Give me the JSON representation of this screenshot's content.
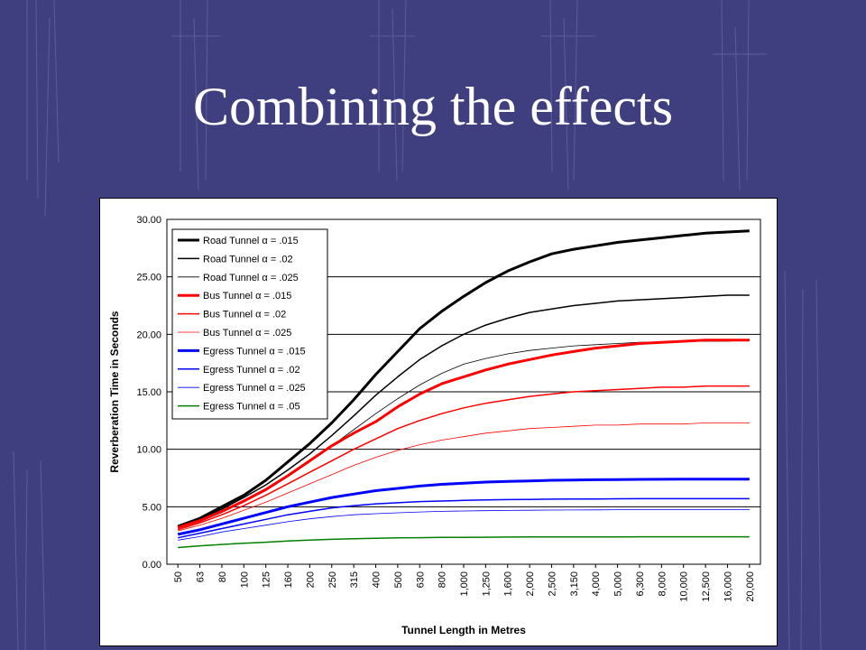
{
  "slide": {
    "title": "Combining the effects"
  },
  "colors": {
    "background": "#3f3f7f",
    "road": "#000000",
    "bus": "#ff0000",
    "egress": "#0000ff",
    "egress_05": "#008000"
  },
  "chart_data": {
    "type": "line",
    "xlabel": "Tunnel Length in Metres",
    "ylabel": "Reverberation Time in Seconds",
    "ylim": [
      0,
      30
    ],
    "ytick_labels": [
      "0.00",
      "5.00",
      "10.00",
      "15.00",
      "20.00",
      "25.00",
      "30.00"
    ],
    "grid": "horizontal",
    "legend_position": "top-left",
    "x": [
      "50",
      "63",
      "80",
      "100",
      "125",
      "160",
      "200",
      "250",
      "315",
      "400",
      "500",
      "630",
      "800",
      "1,000",
      "1,250",
      "1,600",
      "2,000",
      "2,500",
      "3,150",
      "4,000",
      "5,000",
      "6,300",
      "8,000",
      "10,000",
      "12,500",
      "16,000",
      "20,000"
    ],
    "series": [
      {
        "name": "Road Tunnel α = .015",
        "color": "#000000",
        "width": 3,
        "values": [
          3.3,
          4.0,
          5.0,
          6.0,
          7.3,
          8.9,
          10.5,
          12.3,
          14.3,
          16.5,
          18.5,
          20.5,
          22.0,
          23.3,
          24.5,
          25.5,
          26.3,
          27.0,
          27.4,
          27.7,
          28.0,
          28.2,
          28.4,
          28.6,
          28.8,
          28.9,
          29.0
        ]
      },
      {
        "name": "Road Tunnel α = .02",
        "color": "#000000",
        "width": 1.5,
        "values": [
          3.2,
          3.9,
          4.8,
          5.8,
          6.9,
          8.2,
          9.6,
          11.2,
          12.9,
          14.7,
          16.3,
          17.8,
          19.0,
          20.0,
          20.8,
          21.4,
          21.9,
          22.2,
          22.5,
          22.7,
          22.9,
          23.0,
          23.1,
          23.2,
          23.3,
          23.4,
          23.4
        ]
      },
      {
        "name": "Road Tunnel α = .025",
        "color": "#000000",
        "width": 0.8,
        "values": [
          3.1,
          3.7,
          4.5,
          5.4,
          6.4,
          7.6,
          8.9,
          10.3,
          11.7,
          13.1,
          14.4,
          15.6,
          16.6,
          17.4,
          17.9,
          18.3,
          18.6,
          18.8,
          19.0,
          19.1,
          19.2,
          19.3,
          19.3,
          19.4,
          19.4,
          19.4,
          19.5
        ]
      },
      {
        "name": "Bus Tunnel α = .015",
        "color": "#ff0000",
        "width": 3,
        "values": [
          3.2,
          3.8,
          4.6,
          5.5,
          6.5,
          7.7,
          9.0,
          10.3,
          11.4,
          12.4,
          13.7,
          14.8,
          15.7,
          16.3,
          16.9,
          17.4,
          17.8,
          18.2,
          18.5,
          18.8,
          19.0,
          19.2,
          19.3,
          19.4,
          19.5,
          19.5,
          19.5
        ]
      },
      {
        "name": "Bus Tunnel α = .02",
        "color": "#ff0000",
        "width": 1.5,
        "values": [
          3.0,
          3.6,
          4.3,
          5.1,
          6.0,
          7.0,
          8.0,
          9.0,
          10.0,
          10.9,
          11.8,
          12.5,
          13.1,
          13.6,
          14.0,
          14.3,
          14.6,
          14.8,
          15.0,
          15.1,
          15.2,
          15.3,
          15.4,
          15.4,
          15.5,
          15.5,
          15.5
        ]
      },
      {
        "name": "Bus Tunnel α = .025",
        "color": "#ff0000",
        "width": 0.8,
        "values": [
          2.9,
          3.4,
          4.0,
          4.7,
          5.4,
          6.2,
          7.0,
          7.8,
          8.6,
          9.3,
          9.9,
          10.4,
          10.8,
          11.1,
          11.4,
          11.6,
          11.8,
          11.9,
          12.0,
          12.1,
          12.1,
          12.2,
          12.2,
          12.2,
          12.3,
          12.3,
          12.3
        ]
      },
      {
        "name": "Egress Tunnel α = .015",
        "color": "#0000ff",
        "width": 3,
        "values": [
          2.6,
          3.0,
          3.5,
          4.0,
          4.5,
          5.0,
          5.4,
          5.8,
          6.1,
          6.4,
          6.6,
          6.8,
          6.95,
          7.05,
          7.15,
          7.2,
          7.25,
          7.3,
          7.32,
          7.35,
          7.37,
          7.38,
          7.39,
          7.4,
          7.4,
          7.4,
          7.4
        ]
      },
      {
        "name": "Egress Tunnel α = .02",
        "color": "#0000ff",
        "width": 1.5,
        "values": [
          2.3,
          2.7,
          3.1,
          3.5,
          3.9,
          4.3,
          4.6,
          4.9,
          5.1,
          5.25,
          5.35,
          5.45,
          5.5,
          5.55,
          5.6,
          5.62,
          5.64,
          5.66,
          5.67,
          5.68,
          5.69,
          5.7,
          5.7,
          5.7,
          5.7,
          5.7,
          5.7
        ]
      },
      {
        "name": "Egress Tunnel α = .025",
        "color": "#0000ff",
        "width": 0.8,
        "values": [
          2.1,
          2.4,
          2.8,
          3.1,
          3.4,
          3.7,
          3.95,
          4.15,
          4.3,
          4.4,
          4.48,
          4.55,
          4.6,
          4.63,
          4.66,
          4.68,
          4.7,
          4.71,
          4.72,
          4.73,
          4.74,
          4.74,
          4.75,
          4.75,
          4.75,
          4.75,
          4.75
        ]
      },
      {
        "name": "Egress Tunnel α = .05",
        "color": "#008000",
        "width": 1.5,
        "values": [
          1.45,
          1.6,
          1.72,
          1.82,
          1.92,
          2.02,
          2.1,
          2.17,
          2.22,
          2.26,
          2.29,
          2.31,
          2.33,
          2.34,
          2.35,
          2.36,
          2.37,
          2.37,
          2.38,
          2.38,
          2.38,
          2.39,
          2.39,
          2.39,
          2.39,
          2.39,
          2.39
        ]
      }
    ]
  }
}
